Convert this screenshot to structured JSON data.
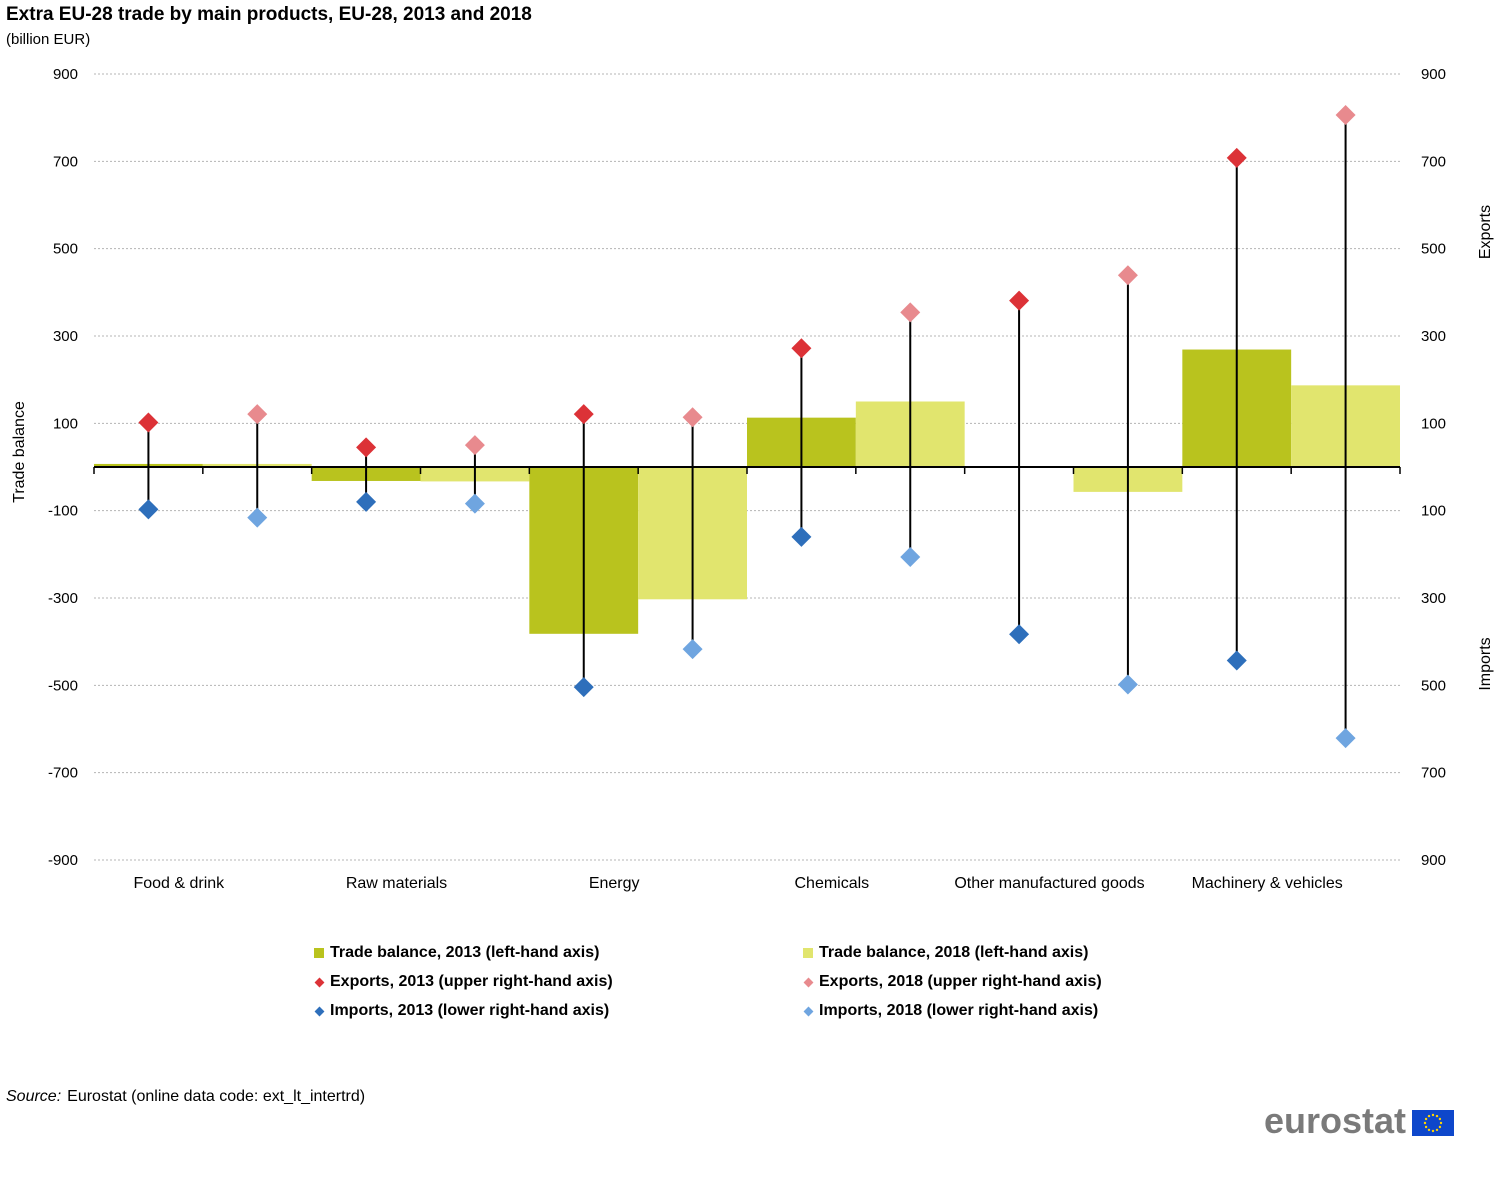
{
  "title": "Extra EU-28 trade by main products, EU-28, 2013 and 2018",
  "subtitle": "(billion EUR)",
  "chart_data": {
    "type": "bar",
    "categories": [
      "Food & drink",
      "Raw materials",
      "Energy",
      "Chemicals",
      "Other manufactured goods",
      "Machinery & vehicles"
    ],
    "left_axis": {
      "label": "Trade balance",
      "ylim": [
        -900,
        900
      ],
      "ticks": [
        "900",
        "700",
        "500",
        "300",
        "100",
        "-100",
        "-300",
        "-500",
        "-700",
        "-900"
      ]
    },
    "right_axis": {
      "upper_label": "Exports",
      "lower_label": "Imports",
      "ticks": [
        "900",
        "700",
        "500",
        "300",
        "100",
        "100",
        "300",
        "500",
        "700",
        "900"
      ]
    },
    "grid": true,
    "legend_position": "bottom",
    "series": [
      {
        "name": "Trade balance, 2013 (left-hand axis)",
        "kind": "bar",
        "color": "#b9c31e",
        "values": [
          7,
          -32,
          -382,
          113,
          0,
          269
        ]
      },
      {
        "name": "Trade balance, 2018 (left-hand axis)",
        "kind": "bar",
        "color": "#e1e56e",
        "values": [
          7,
          -33,
          -303,
          150,
          -57,
          187
        ]
      },
      {
        "name": "Exports, 2013 (upper right-hand axis)",
        "kind": "marker-up",
        "color": "#dc3237",
        "values": [
          102,
          45,
          121,
          272,
          381,
          708
        ]
      },
      {
        "name": "Exports, 2018 (upper right-hand axis)",
        "kind": "marker-up",
        "color": "#e88a8e",
        "values": [
          121,
          50,
          114,
          354,
          439,
          806
        ]
      },
      {
        "name": "Imports, 2013 (lower right-hand axis)",
        "kind": "marker-down",
        "color": "#2e6fbb",
        "values": [
          97,
          80,
          504,
          160,
          383,
          443
        ]
      },
      {
        "name": "Imports, 2018 (lower right-hand axis)",
        "kind": "marker-down",
        "color": "#6fa5e0",
        "values": [
          116,
          84,
          417,
          206,
          498,
          621
        ]
      }
    ]
  },
  "source": {
    "label": "Source:",
    "text": "Eurostat (online data code: ext_lt_intertrd)"
  },
  "logo": {
    "text": "eurostat"
  }
}
